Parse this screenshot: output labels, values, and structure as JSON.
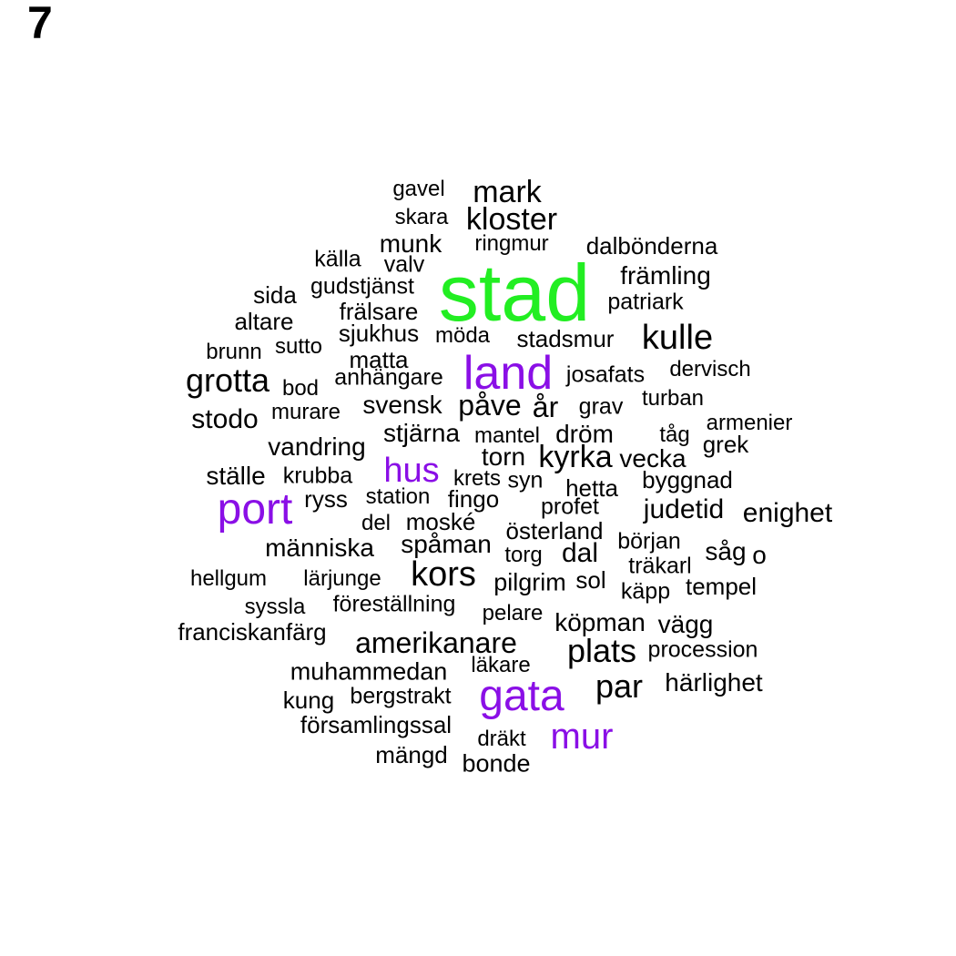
{
  "panel_label": "7",
  "colors": {
    "default": "#000000",
    "purple": "#8a0fe6",
    "green": "#22ee22"
  },
  "words": [
    {
      "text": "stad",
      "color": "green"
    },
    {
      "text": "land",
      "color": "purple"
    },
    {
      "text": "gata",
      "color": "purple"
    },
    {
      "text": "port",
      "color": "purple"
    },
    {
      "text": "hus",
      "color": "purple"
    },
    {
      "text": "mur",
      "color": "purple"
    },
    {
      "text": "gavel"
    },
    {
      "text": "mark"
    },
    {
      "text": "skara"
    },
    {
      "text": "kloster"
    },
    {
      "text": "munk"
    },
    {
      "text": "ringmur"
    },
    {
      "text": "dalbönderna"
    },
    {
      "text": "källa"
    },
    {
      "text": "valv"
    },
    {
      "text": "främling"
    },
    {
      "text": "sida"
    },
    {
      "text": "gudstjänst"
    },
    {
      "text": "patriark"
    },
    {
      "text": "altare"
    },
    {
      "text": "frälsare"
    },
    {
      "text": "sjukhus"
    },
    {
      "text": "möda"
    },
    {
      "text": "stadsmur"
    },
    {
      "text": "kulle"
    },
    {
      "text": "brunn"
    },
    {
      "text": "sutto"
    },
    {
      "text": "matta"
    },
    {
      "text": "grotta"
    },
    {
      "text": "bod"
    },
    {
      "text": "anhängare"
    },
    {
      "text": "josafats"
    },
    {
      "text": "dervisch"
    },
    {
      "text": "turban"
    },
    {
      "text": "stodo"
    },
    {
      "text": "murare"
    },
    {
      "text": "svensk"
    },
    {
      "text": "påve"
    },
    {
      "text": "år"
    },
    {
      "text": "grav"
    },
    {
      "text": "armenier"
    },
    {
      "text": "stjärna"
    },
    {
      "text": "mantel"
    },
    {
      "text": "dröm"
    },
    {
      "text": "tåg"
    },
    {
      "text": "grek"
    },
    {
      "text": "vandring"
    },
    {
      "text": "torn"
    },
    {
      "text": "kyrka"
    },
    {
      "text": "vecka"
    },
    {
      "text": "ställe"
    },
    {
      "text": "krubba"
    },
    {
      "text": "krets"
    },
    {
      "text": "syn"
    },
    {
      "text": "hetta"
    },
    {
      "text": "byggnad"
    },
    {
      "text": "ryss"
    },
    {
      "text": "station"
    },
    {
      "text": "fingo"
    },
    {
      "text": "profet"
    },
    {
      "text": "judetid"
    },
    {
      "text": "enighet"
    },
    {
      "text": "del"
    },
    {
      "text": "moské"
    },
    {
      "text": "österland"
    },
    {
      "text": "början"
    },
    {
      "text": "människa"
    },
    {
      "text": "spåman"
    },
    {
      "text": "torg"
    },
    {
      "text": "dal"
    },
    {
      "text": "såg"
    },
    {
      "text": "o"
    },
    {
      "text": "träkarl"
    },
    {
      "text": "hellgum"
    },
    {
      "text": "lärjunge"
    },
    {
      "text": "kors"
    },
    {
      "text": "pilgrim"
    },
    {
      "text": "sol"
    },
    {
      "text": "käpp"
    },
    {
      "text": "tempel"
    },
    {
      "text": "syssla"
    },
    {
      "text": "föreställning"
    },
    {
      "text": "pelare"
    },
    {
      "text": "franciskanfärg"
    },
    {
      "text": "köpman"
    },
    {
      "text": "vägg"
    },
    {
      "text": "amerikanare"
    },
    {
      "text": "plats"
    },
    {
      "text": "procession"
    },
    {
      "text": "läkare"
    },
    {
      "text": "muhammedan"
    },
    {
      "text": "par"
    },
    {
      "text": "härlighet"
    },
    {
      "text": "kung"
    },
    {
      "text": "bergstrakt"
    },
    {
      "text": "församlingssal"
    },
    {
      "text": "dräkt"
    },
    {
      "text": "mängd"
    },
    {
      "text": "bonde"
    }
  ]
}
